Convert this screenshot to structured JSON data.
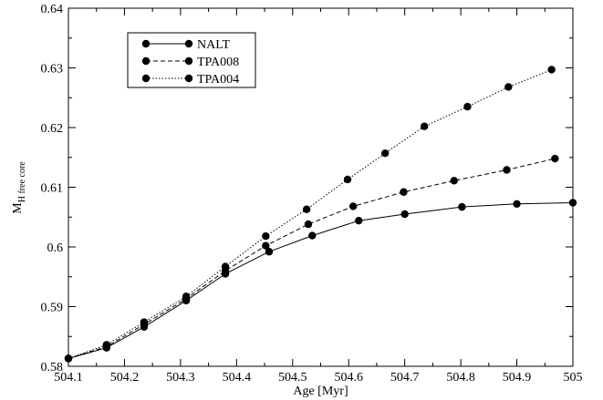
{
  "chart_data": {
    "type": "line",
    "title": "",
    "xlabel": "Age [Myr]",
    "ylabel_main": "M",
    "ylabel_sub": "H free core",
    "xlim": [
      504.1,
      505.0
    ],
    "ylim": [
      0.58,
      0.64
    ],
    "xticks": [
      504.1,
      504.2,
      504.3,
      504.4,
      504.5,
      504.6,
      504.7,
      504.8,
      504.9,
      505.0
    ],
    "xtick_labels": [
      "504.1",
      "504.2",
      "504.3",
      "504.4",
      "504.5",
      "504.6",
      "504.7",
      "504.8",
      "504.9",
      "505"
    ],
    "yticks": [
      0.58,
      0.59,
      0.6,
      0.61,
      0.62,
      0.63,
      0.64
    ],
    "ytick_labels": [
      "0.58",
      "0.59",
      "0.6",
      "0.61",
      "0.62",
      "0.63",
      "0.64"
    ],
    "grid": false,
    "legend_position": "top-left",
    "series": [
      {
        "name": "NALT",
        "line_style": "solid",
        "x": [
          504.1,
          504.168,
          504.235,
          504.31,
          504.38,
          504.458,
          504.535,
          504.618,
          504.7,
          504.802,
          504.9,
          505.0
        ],
        "y": [
          0.5813,
          0.5831,
          0.5866,
          0.591,
          0.5955,
          0.5992,
          0.6019,
          0.6044,
          0.6055,
          0.6067,
          0.6072,
          0.6074
        ]
      },
      {
        "name": "TPA008",
        "line_style": "dashed",
        "x": [
          504.1,
          504.168,
          504.235,
          504.31,
          504.38,
          504.452,
          504.528,
          504.608,
          504.698,
          504.788,
          504.882,
          504.968
        ],
        "y": [
          0.5813,
          0.5833,
          0.587,
          0.5913,
          0.596,
          0.6002,
          0.6038,
          0.6068,
          0.6092,
          0.6111,
          0.6129,
          0.6148
        ]
      },
      {
        "name": "TPA004",
        "line_style": "dotted",
        "x": [
          504.1,
          504.168,
          504.235,
          504.31,
          504.38,
          504.452,
          504.525,
          504.598,
          504.665,
          504.735,
          504.812,
          504.885,
          504.962
        ],
        "y": [
          0.5813,
          0.5836,
          0.5874,
          0.5917,
          0.5967,
          0.6018,
          0.6063,
          0.6113,
          0.6157,
          0.6202,
          0.6235,
          0.6268,
          0.6297
        ]
      }
    ]
  }
}
